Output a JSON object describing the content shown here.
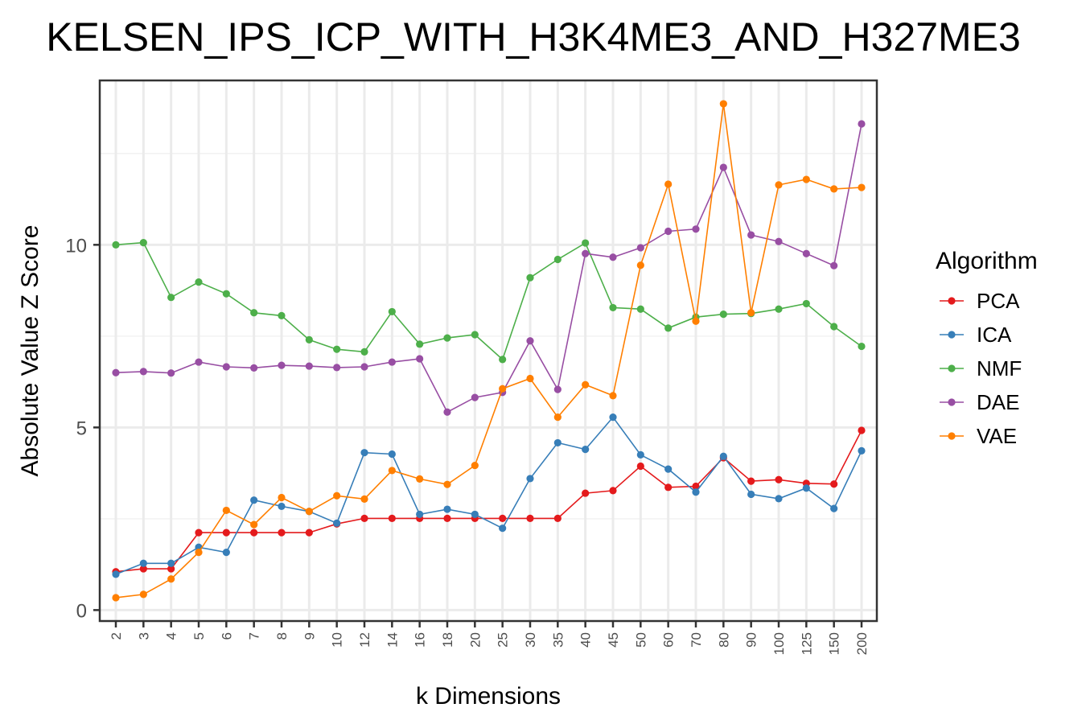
{
  "chart_data": {
    "type": "line",
    "title": "KELSEN_IPS_ICP_WITH_H3K4ME3_AND_H327ME3",
    "xlabel": "k Dimensions",
    "ylabel": "Absolute Value Z Score",
    "ylim": [
      -0.3,
      14.5
    ],
    "yticks": [
      0,
      5,
      10
    ],
    "categories": [
      "2",
      "3",
      "4",
      "5",
      "6",
      "7",
      "8",
      "9",
      "10",
      "12",
      "14",
      "16",
      "18",
      "20",
      "25",
      "30",
      "35",
      "40",
      "45",
      "50",
      "60",
      "70",
      "80",
      "90",
      "100",
      "125",
      "150",
      "200"
    ],
    "legend_title": "Algorithm",
    "legend_position": "right",
    "grid": true,
    "series": [
      {
        "name": "PCA",
        "color": "#E41A1C",
        "values": [
          1.05,
          1.13,
          1.13,
          2.12,
          2.12,
          2.12,
          2.12,
          2.12,
          2.36,
          2.51,
          2.51,
          2.51,
          2.51,
          2.51,
          2.51,
          2.51,
          2.51,
          3.2,
          3.27,
          3.94,
          3.36,
          3.39,
          4.17,
          3.53,
          3.57,
          3.47,
          3.45,
          4.92
        ]
      },
      {
        "name": "ICA",
        "color": "#377EB8",
        "values": [
          0.98,
          1.28,
          1.28,
          1.72,
          1.58,
          3.01,
          2.84,
          2.7,
          2.38,
          4.31,
          4.27,
          2.62,
          2.76,
          2.62,
          2.24,
          3.6,
          4.58,
          4.4,
          5.28,
          4.25,
          3.86,
          3.23,
          4.21,
          3.17,
          3.05,
          3.34,
          2.78,
          4.36
        ]
      },
      {
        "name": "NMF",
        "color": "#4DAF4A",
        "values": [
          10.0,
          10.06,
          8.56,
          8.98,
          8.66,
          8.14,
          8.06,
          7.4,
          7.14,
          7.07,
          8.17,
          7.28,
          7.45,
          7.54,
          6.86,
          9.1,
          9.6,
          10.05,
          8.28,
          8.24,
          7.72,
          8.02,
          8.1,
          8.12,
          8.24,
          8.39,
          7.76,
          7.22
        ]
      },
      {
        "name": "DAE",
        "color": "#984EA3",
        "values": [
          6.5,
          6.53,
          6.49,
          6.79,
          6.66,
          6.63,
          6.7,
          6.68,
          6.64,
          6.66,
          6.79,
          6.88,
          5.42,
          5.82,
          5.96,
          7.37,
          6.04,
          9.76,
          9.66,
          9.92,
          10.37,
          10.43,
          12.12,
          10.27,
          10.09,
          9.76,
          9.43,
          13.31
        ]
      },
      {
        "name": "VAE",
        "color": "#FF7F00",
        "values": [
          0.34,
          0.43,
          0.85,
          1.58,
          2.73,
          2.34,
          3.08,
          2.7,
          3.13,
          3.04,
          3.82,
          3.59,
          3.44,
          3.96,
          6.06,
          6.34,
          5.28,
          6.17,
          5.87,
          9.44,
          11.66,
          7.91,
          13.86,
          8.14,
          11.64,
          11.79,
          11.53,
          11.57
        ]
      }
    ]
  }
}
